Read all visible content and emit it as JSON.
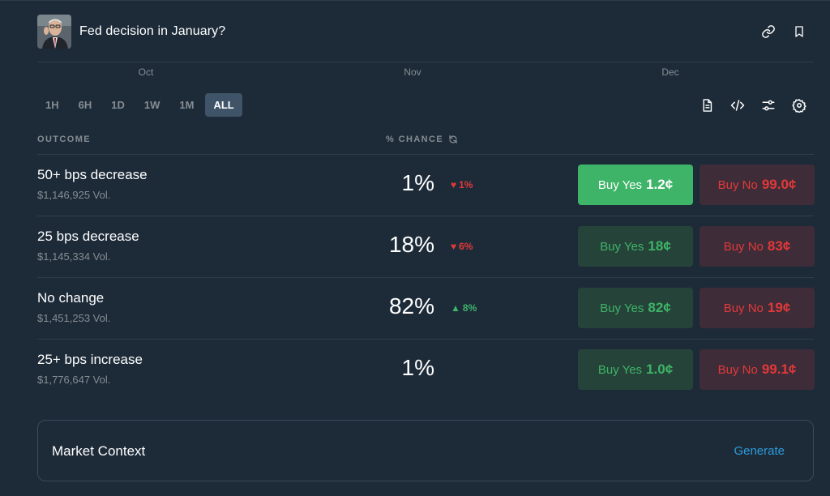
{
  "header": {
    "title": "Fed decision in January?",
    "link_icon": "link-icon",
    "bookmark_icon": "bookmark-icon"
  },
  "chart_axis": {
    "months": [
      "Oct",
      "Nov",
      "Dec"
    ]
  },
  "timeframes": [
    {
      "label": "1H",
      "active": false
    },
    {
      "label": "6H",
      "active": false
    },
    {
      "label": "1D",
      "active": false
    },
    {
      "label": "1W",
      "active": false
    },
    {
      "label": "1M",
      "active": false
    },
    {
      "label": "ALL",
      "active": true
    }
  ],
  "tools": [
    "document-icon",
    "code-icon",
    "sliders-icon",
    "gear-icon"
  ],
  "columns": {
    "outcome": "OUTCOME",
    "chance": "% CHANCE"
  },
  "outcomes": [
    {
      "name": "50+ bps decrease",
      "volume": "$1,146,925 Vol.",
      "chance": "1%",
      "delta": "1%",
      "delta_dir": "down",
      "yes_label": "Buy Yes",
      "yes_price": "1.2¢",
      "no_label": "Buy No",
      "no_price": "99.0¢"
    },
    {
      "name": "25 bps decrease",
      "volume": "$1,145,334 Vol.",
      "chance": "18%",
      "delta": "6%",
      "delta_dir": "down",
      "yes_label": "Buy Yes",
      "yes_price": "18¢",
      "no_label": "Buy No",
      "no_price": "83¢"
    },
    {
      "name": "No change",
      "volume": "$1,451,253 Vol.",
      "chance": "82%",
      "delta": "8%",
      "delta_dir": "up",
      "yes_label": "Buy Yes",
      "yes_price": "82¢",
      "no_label": "Buy No",
      "no_price": "19¢"
    },
    {
      "name": "25+ bps increase",
      "volume": "$1,776,647 Vol.",
      "chance": "1%",
      "delta": "",
      "delta_dir": "none",
      "yes_label": "Buy Yes",
      "yes_price": "1.0¢",
      "no_label": "Buy No",
      "no_price": "99.1¢"
    }
  ],
  "context": {
    "title": "Market Context",
    "generate_label": "Generate"
  },
  "colors": {
    "background": "#1d2b39",
    "yes": "#3db468",
    "no": "#e23939",
    "link": "#2d9cdb"
  }
}
